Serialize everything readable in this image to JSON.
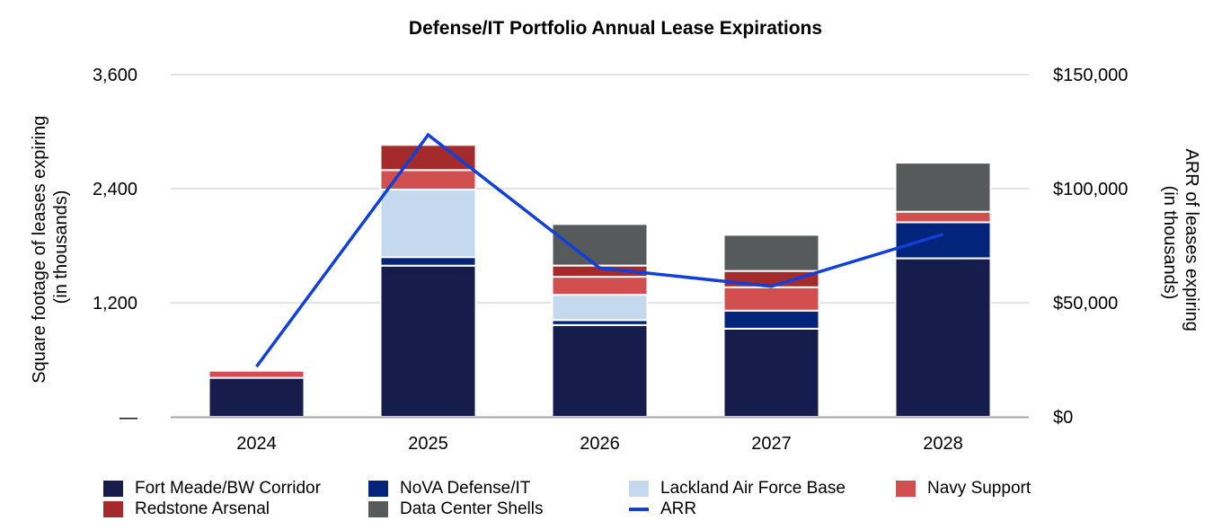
{
  "chart_data": {
    "type": "bar",
    "stacked": true,
    "title": "Defense/IT Portfolio Annual Lease Expirations",
    "ylabel": [
      "Square footage of leases expiring",
      "(in thousands)"
    ],
    "y2label": [
      "ARR of leases expiring",
      "(in thousands)"
    ],
    "ylim": [
      0,
      3600
    ],
    "y2lim": [
      0,
      150000
    ],
    "yticks": [
      "—",
      "1,200",
      "2,400",
      "3,600"
    ],
    "ytick_values": [
      0,
      1200,
      2400,
      3600
    ],
    "y2ticks": [
      "$0",
      "$50,000",
      "$100,000",
      "$150,000"
    ],
    "y2tick_values": [
      0,
      50000,
      100000,
      150000
    ],
    "grid": true,
    "legend_position": "bottom",
    "categories": [
      "2024",
      "2025",
      "2026",
      "2027",
      "2028"
    ],
    "series": [
      {
        "name": "Fort Meade/BW Corridor",
        "color": "#161d4d",
        "values": [
          410,
          1590,
          965,
          927,
          1667
        ]
      },
      {
        "name": "NoVA Defense/IT",
        "color": "#02247a",
        "values": [
          0,
          90,
          53,
          190,
          379
        ]
      },
      {
        "name": "Lackland Air Force Base",
        "color": "#c4d8ee",
        "values": [
          0,
          710,
          266,
          0,
          0
        ]
      },
      {
        "name": "Navy Support",
        "color": "#d24f4f",
        "values": [
          75,
          205,
          189,
          246,
          111
        ]
      },
      {
        "name": "Redstone Arsenal",
        "color": "#a52a2b",
        "values": [
          0,
          265,
          118,
          171,
          0
        ]
      },
      {
        "name": "Data Center Shells",
        "color": "#575a5a",
        "values": [
          0,
          0,
          437,
          380,
          516
        ]
      }
    ],
    "line_series": {
      "name": "ARR",
      "color": "#1040d8",
      "axis": "right",
      "values": [
        22000,
        123600,
        65200,
        57200,
        80000
      ]
    }
  }
}
